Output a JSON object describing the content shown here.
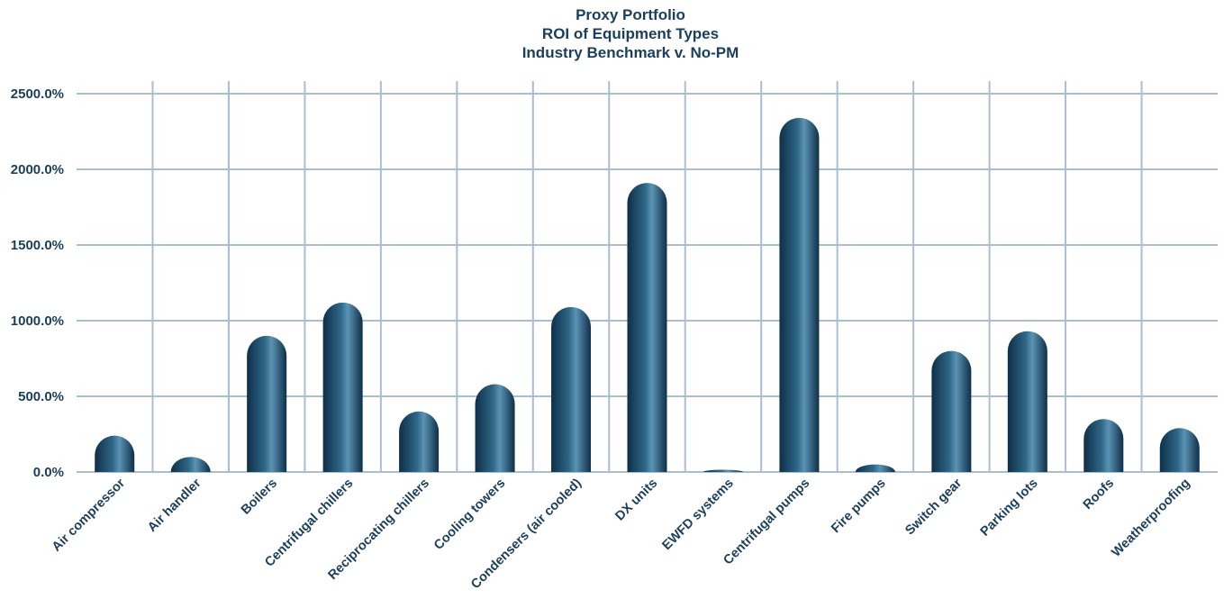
{
  "chart_data": {
    "type": "bar",
    "title": [
      "Proxy Portfolio",
      "ROI of Equipment Types",
      "Industry Benchmark v. No-PM"
    ],
    "xlabel": "",
    "ylabel": "",
    "categories": [
      "Air compressor",
      "Air handler",
      "Boilers",
      "Centrifugal chillers",
      "Reciprocating chillers",
      "Cooling towers",
      "Condensers (air cooled)",
      "DX units",
      "EWFD systems",
      "Centrifugal pumps",
      "Fire pumps",
      "Switch gear",
      "Parking lots",
      "Roofs",
      "Weatherproofing"
    ],
    "values": [
      240,
      100,
      900,
      1120,
      400,
      580,
      1090,
      1910,
      15,
      2340,
      50,
      800,
      930,
      350,
      290
    ],
    "yticks": [
      "0.0%",
      "500.0%",
      "1000.0%",
      "1500.0%",
      "2000.0%",
      "2500.0%"
    ],
    "ylim": [
      0,
      2500
    ],
    "grid": true,
    "legend": "none",
    "colors": {
      "bar_dark": "#0e2f49",
      "bar_mid": "#2f6787",
      "bar_light": "#5b93b4",
      "grid": "#a9bdd4",
      "text": "#1a3e5c"
    }
  }
}
